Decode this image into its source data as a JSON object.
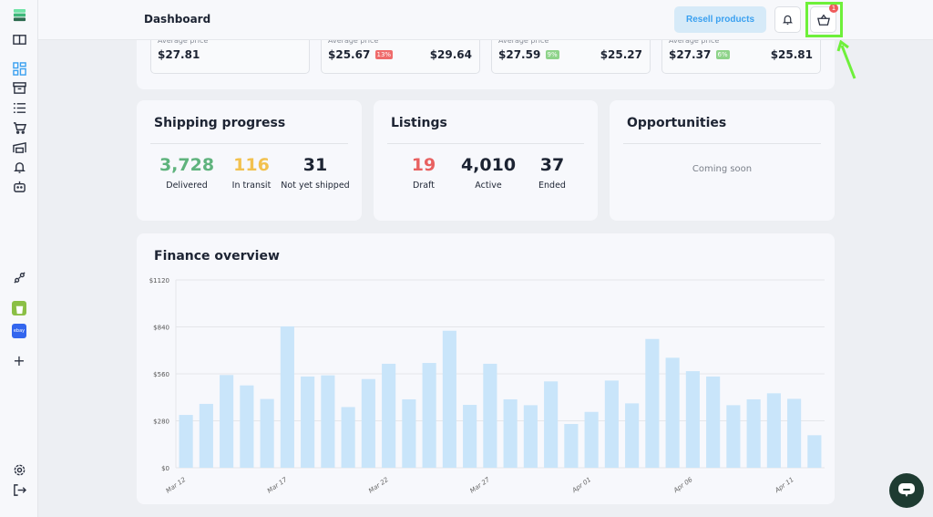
{
  "header": {
    "title": "Dashboard",
    "resell_label": "Resell products",
    "cart_badge": "1"
  },
  "price_cards": [
    {
      "label": "Average price",
      "value": "$27.81"
    },
    {
      "label": "Average price",
      "value": "$25.67",
      "pct": "13%",
      "pct_color": "#ef6b6b",
      "value2": "$29.64"
    },
    {
      "label": "Average price",
      "value": "$27.59",
      "pct": "9%",
      "pct_color": "#8ed38a",
      "value2": "$25.27"
    },
    {
      "label": "Average price",
      "value": "$27.37",
      "pct": "6%",
      "pct_color": "#8ed38a",
      "value2": "$25.81"
    }
  ],
  "shipping": {
    "title": "Shipping progress",
    "stats": [
      {
        "value": "3,728",
        "label": "Delivered",
        "color": "#5fb37d"
      },
      {
        "value": "116",
        "label": "In transit",
        "color": "#f2c14e"
      },
      {
        "value": "31",
        "label": "Not yet shipped",
        "color": "#1d2433"
      }
    ]
  },
  "listings": {
    "title": "Listings",
    "stats": [
      {
        "value": "19",
        "label": "Draft",
        "color": "#e86161"
      },
      {
        "value": "4,010",
        "label": "Active",
        "color": "#1d2433"
      },
      {
        "value": "37",
        "label": "Ended",
        "color": "#1d2433"
      }
    ]
  },
  "opportunities": {
    "title": "Opportunities",
    "text": "Coming soon"
  },
  "chart_data": {
    "type": "bar",
    "title": "Finance overview",
    "xlabel": "",
    "ylabel": "",
    "ylim": [
      0,
      1120
    ],
    "yticks": [
      "$0",
      "$280",
      "$560",
      "$840",
      "$1120"
    ],
    "ytick_values": [
      0,
      280,
      560,
      840,
      1120
    ],
    "xtick_labels": [
      "Mar 12",
      "Mar 17",
      "Mar 22",
      "Mar 27",
      "Apr 01",
      "Apr 06",
      "Apr 11"
    ],
    "xtick_every": 5,
    "values": [
      315,
      381,
      553,
      491,
      410,
      843,
      544,
      551,
      362,
      529,
      620,
      408,
      625,
      817,
      375,
      620,
      408,
      373,
      515,
      261,
      333,
      520,
      384,
      768,
      656,
      576,
      544,
      373,
      408,
      444,
      411,
      194
    ],
    "bar_color": "#c9e5fa",
    "grid": true
  },
  "colors": {
    "accent": "#3aa0f0",
    "chat": "#1e3b31"
  }
}
